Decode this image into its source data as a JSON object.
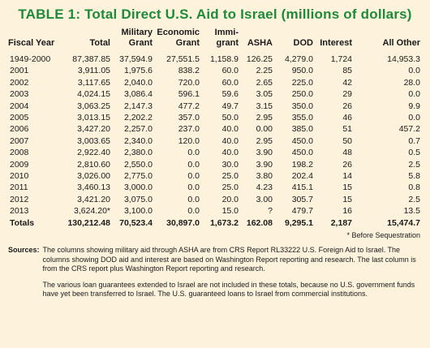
{
  "title": "TABLE 1: Total Direct U.S. Aid to Israel (millions of dollars)",
  "columns": [
    {
      "line1": "",
      "line2": "Fiscal Year"
    },
    {
      "line1": "",
      "line2": "Total"
    },
    {
      "line1": "Military",
      "line2": "Grant"
    },
    {
      "line1": "Economic",
      "line2": "Grant"
    },
    {
      "line1": "Immi-",
      "line2": "grant"
    },
    {
      "line1": "",
      "line2": "ASHA"
    },
    {
      "line1": "",
      "line2": "DOD"
    },
    {
      "line1": "",
      "line2": "Interest"
    },
    {
      "line1": "",
      "line2": "All Other"
    }
  ],
  "rows": [
    [
      "1949-2000",
      "87,387.85",
      "37,594.9",
      "27,551.5",
      "1,158.9",
      "126.25",
      "4,279.0",
      "1,724",
      "14,953.3"
    ],
    [
      "2001",
      "3,911.05",
      "1,975.6",
      "838.2",
      "60.0",
      "2.25",
      "950.0",
      "85",
      "0.0"
    ],
    [
      "2002",
      "3,117.65",
      "2,040.0",
      "720.0",
      "60.0",
      "2.65",
      "225.0",
      "42",
      "28.0"
    ],
    [
      "2003",
      "4,024.15",
      "3,086.4",
      "596.1",
      "59.6",
      "3.05",
      "250.0",
      "29",
      "0.0"
    ],
    [
      "2004",
      "3,063.25",
      "2,147.3",
      "477.2",
      "49.7",
      "3.15",
      "350.0",
      "26",
      "9.9"
    ],
    [
      "2005",
      "3,013.15",
      "2,202.2",
      "357.0",
      "50.0",
      "2.95",
      "355.0",
      "46",
      "0.0"
    ],
    [
      "2006",
      "3,427.20",
      "2,257.0",
      "237.0",
      "40.0",
      "0.00",
      "385.0",
      "51",
      "457.2"
    ],
    [
      "2007",
      "3,003.65",
      "2,340.0",
      "120.0",
      "40.0",
      "2.95",
      "450.0",
      "50",
      "0.7"
    ],
    [
      "2008",
      "2,922.40",
      "2,380.0",
      "0.0",
      "40.0",
      "3.90",
      "450.0",
      "48",
      "0.5"
    ],
    [
      "2009",
      "2,810.60",
      "2,550.0",
      "0.0",
      "30.0",
      "3.90",
      "198.2",
      "26",
      "2.5"
    ],
    [
      "2010",
      "3,026.00",
      "2,775.0",
      "0.0",
      "25.0",
      "3.80",
      "202.4",
      "14",
      "5.8"
    ],
    [
      "2011",
      "3,460.13",
      "3,000.0",
      "0.0",
      "25.0",
      "4.23",
      "415.1",
      "15",
      "0.8"
    ],
    [
      "2012",
      "3,421.20",
      "3,075.0",
      "0.0",
      "20.0",
      "3.00",
      "305.7",
      "15",
      "2.5"
    ],
    [
      "2013",
      "3,624.20*",
      "3,100.0",
      "0.0",
      "15.0",
      "?",
      "479.7",
      "16",
      "13.5"
    ]
  ],
  "totals": [
    "Totals",
    "130,212.48",
    "70,523.4",
    "30,897.0",
    "1,673.2",
    "162.08",
    "9,295.1",
    "2,187",
    "15,474.7"
  ],
  "footnote": "* Before Sequestration",
  "sources_label": "Sources:",
  "sources_paragraphs": [
    "The columns showing military aid through ASHA are from CRS Report RL33222 U.S. Foreign Aid to Israel. The columns showing DOD aid and interest are based on Washington Report reporting and research. The last column is from the CRS report plus Washington Report reporting and research.",
    "The various loan guarantees extended to Israel are not included in these totals, because no U.S. government funds have yet been transferred to Israel. The U.S. guaranteed loans to Israel from commercial institutions."
  ]
}
